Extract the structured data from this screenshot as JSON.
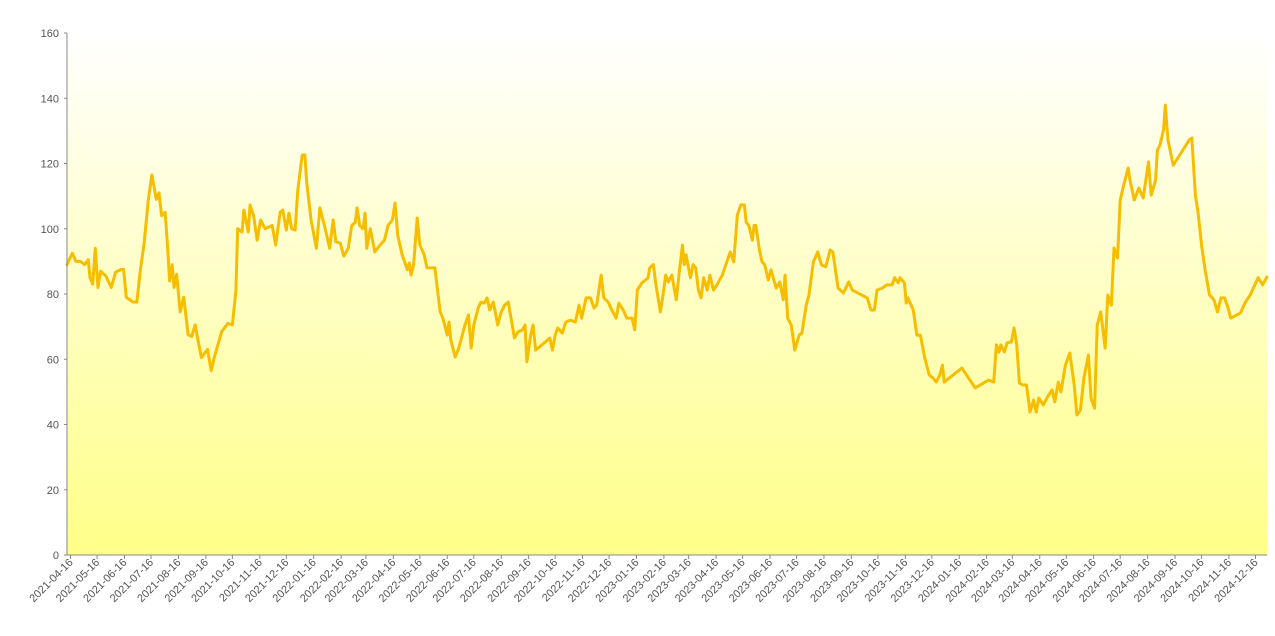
{
  "chart_data": {
    "type": "line",
    "color": "#f7bd00",
    "xlim": [
      "2021-04-12",
      "2024-12-29"
    ],
    "ylim": [
      0,
      160
    ],
    "yticks": [
      0,
      20,
      40,
      60,
      80,
      100,
      120,
      140,
      160
    ],
    "xticks": [
      "2021-04-16",
      "2021-05-16",
      "2021-06-16",
      "2021-07-16",
      "2021-08-16",
      "2021-09-16",
      "2021-10-16",
      "2021-11-16",
      "2021-12-16",
      "2022-01-16",
      "2022-02-16",
      "2022-03-16",
      "2022-04-16",
      "2022-05-16",
      "2022-06-16",
      "2022-07-16",
      "2022-08-16",
      "2022-09-16",
      "2022-10-16",
      "2022-11-16",
      "2022-12-16",
      "2023-01-16",
      "2023-02-16",
      "2023-03-16",
      "2023-04-16",
      "2023-05-16",
      "2023-06-16",
      "2023-07-16",
      "2023-08-16",
      "2023-09-16",
      "2023-10-16",
      "2023-11-16",
      "2023-12-16",
      "2024-01-16",
      "2024-02-16",
      "2024-03-16",
      "2024-04-16",
      "2024-05-16",
      "2024-06-16",
      "2024-07-16",
      "2024-08-16",
      "2024-09-16",
      "2024-10-16",
      "2024-11-16",
      "2024-12-16"
    ],
    "x": [
      "2021-04-12",
      "2021-04-18",
      "2021-04-22",
      "2021-04-27",
      "2021-05-02",
      "2021-05-06",
      "2021-05-08",
      "2021-05-11",
      "2021-05-14",
      "2021-05-17",
      "2021-05-20",
      "2021-05-26",
      "2021-06-01",
      "2021-06-06",
      "2021-06-12",
      "2021-06-15",
      "2021-06-18",
      "2021-06-26",
      "2021-06-30",
      "2021-07-04",
      "2021-07-08",
      "2021-07-13",
      "2021-07-17",
      "2021-07-22",
      "2021-07-25",
      "2021-07-28",
      "2021-08-01",
      "2021-08-04",
      "2021-08-06",
      "2021-08-09",
      "2021-08-11",
      "2021-08-14",
      "2021-08-18",
      "2021-08-22",
      "2021-08-27",
      "2021-08-31",
      "2021-09-04",
      "2021-09-07",
      "2021-09-11",
      "2021-09-18",
      "2021-09-22",
      "2021-09-26",
      "2021-10-04",
      "2021-10-11",
      "2021-10-16",
      "2021-10-20",
      "2021-10-22",
      "2021-10-27",
      "2021-10-29",
      "2021-11-03",
      "2021-11-05",
      "2021-11-09",
      "2021-11-13",
      "2021-11-17",
      "2021-11-22",
      "2021-11-30",
      "2021-12-04",
      "2021-12-09",
      "2021-12-12",
      "2021-12-16",
      "2021-12-19",
      "2021-12-22",
      "2021-12-26",
      "2021-12-29",
      "2022-01-03",
      "2022-01-06",
      "2022-01-08",
      "2022-01-13",
      "2022-01-19",
      "2022-01-23",
      "2022-01-29",
      "2022-02-03",
      "2022-02-07",
      "2022-02-10",
      "2022-02-15",
      "2022-02-19",
      "2022-02-24",
      "2022-02-28",
      "2022-03-04",
      "2022-03-06",
      "2022-03-09",
      "2022-03-13",
      "2022-03-15",
      "2022-03-17",
      "2022-03-21",
      "2022-03-26",
      "2022-04-01",
      "2022-04-06",
      "2022-04-10",
      "2022-04-15",
      "2022-04-18",
      "2022-04-21",
      "2022-04-26",
      "2022-05-02",
      "2022-05-04",
      "2022-05-06",
      "2022-05-09",
      "2022-05-13",
      "2022-05-16",
      "2022-05-21",
      "2022-05-24",
      "2022-06-02",
      "2022-06-08",
      "2022-06-11",
      "2022-06-16",
      "2022-06-18",
      "2022-06-20",
      "2022-06-25",
      "2022-06-29",
      "2022-07-03",
      "2022-07-06",
      "2022-07-10",
      "2022-07-13",
      "2022-07-16",
      "2022-07-21",
      "2022-07-24",
      "2022-07-28",
      "2022-07-31",
      "2022-08-03",
      "2022-08-07",
      "2022-08-10",
      "2022-08-12",
      "2022-08-16",
      "2022-08-20",
      "2022-08-24",
      "2022-08-31",
      "2022-09-04",
      "2022-09-09",
      "2022-09-12",
      "2022-09-14",
      "2022-09-18",
      "2022-09-21",
      "2022-09-24",
      "2022-10-01",
      "2022-10-05",
      "2022-10-10",
      "2022-10-13",
      "2022-10-16",
      "2022-10-19",
      "2022-10-24",
      "2022-10-28",
      "2022-11-02",
      "2022-11-08",
      "2022-11-12",
      "2022-11-15",
      "2022-11-20",
      "2022-11-25",
      "2022-11-29",
      "2022-12-02",
      "2022-12-07",
      "2022-12-10",
      "2022-12-15",
      "2022-12-19",
      "2022-12-24",
      "2022-12-27",
      "2023-01-01",
      "2023-01-05",
      "2023-01-11",
      "2023-01-14",
      "2023-01-17",
      "2023-01-22",
      "2023-01-29",
      "2023-01-31",
      "2023-02-04",
      "2023-02-07",
      "2023-02-12",
      "2023-02-15",
      "2023-02-18",
      "2023-02-21",
      "2023-02-25",
      "2023-03-02",
      "2023-03-05",
      "2023-03-09",
      "2023-03-11",
      "2023-03-13",
      "2023-03-18",
      "2023-03-21",
      "2023-03-24",
      "2023-03-27",
      "2023-03-30",
      "2023-04-02",
      "2023-04-06",
      "2023-04-09",
      "2023-04-13",
      "2023-04-17",
      "2023-04-23",
      "2023-05-02",
      "2023-05-06",
      "2023-05-10",
      "2023-05-14",
      "2023-05-18",
      "2023-05-20",
      "2023-05-23",
      "2023-05-27",
      "2023-05-29",
      "2023-05-31",
      "2023-06-04",
      "2023-06-07",
      "2023-06-10",
      "2023-06-14",
      "2023-06-17",
      "2023-06-23",
      "2023-06-27",
      "2023-07-01",
      "2023-07-03",
      "2023-07-06",
      "2023-07-10",
      "2023-07-14",
      "2023-07-19",
      "2023-07-22",
      "2023-07-27",
      "2023-07-30",
      "2023-08-04",
      "2023-08-09",
      "2023-08-13",
      "2023-08-18",
      "2023-08-23",
      "2023-08-26",
      "2023-09-01",
      "2023-09-07",
      "2023-09-13",
      "2023-09-17",
      "2023-10-04",
      "2023-10-08",
      "2023-10-12",
      "2023-10-15",
      "2023-10-21",
      "2023-10-26",
      "2023-11-01",
      "2023-11-04",
      "2023-11-08",
      "2023-11-10",
      "2023-11-15",
      "2023-11-17",
      "2023-11-19",
      "2023-11-25",
      "2023-11-29",
      "2023-12-03",
      "2023-12-08",
      "2023-12-13",
      "2023-12-17",
      "2023-12-21",
      "2023-12-25",
      "2023-12-28",
      "2023-12-30",
      "2024-01-19",
      "2024-02-03",
      "2024-02-18",
      "2024-02-24",
      "2024-02-27",
      "2024-03-01",
      "2024-03-03",
      "2024-03-07",
      "2024-03-10",
      "2024-03-15",
      "2024-03-18",
      "2024-03-21",
      "2024-03-24",
      "2024-03-28",
      "2024-04-01",
      "2024-04-05",
      "2024-04-09",
      "2024-04-12",
      "2024-04-15",
      "2024-04-20",
      "2024-04-24",
      "2024-04-30",
      "2024-05-03",
      "2024-05-07",
      "2024-05-10",
      "2024-05-15",
      "2024-05-20",
      "2024-05-25",
      "2024-05-28",
      "2024-06-01",
      "2024-06-05",
      "2024-06-10",
      "2024-06-13",
      "2024-06-17",
      "2024-06-20",
      "2024-06-24",
      "2024-06-29",
      "2024-07-02",
      "2024-07-06",
      "2024-07-09",
      "2024-07-13",
      "2024-07-16",
      "2024-07-20",
      "2024-07-25",
      "2024-07-27",
      "2024-08-01",
      "2024-08-06",
      "2024-08-11",
      "2024-08-17",
      "2024-08-20",
      "2024-08-25",
      "2024-08-27",
      "2024-08-30",
      "2024-09-03",
      "2024-09-05",
      "2024-09-08",
      "2024-09-14",
      "2024-10-02",
      "2024-10-05",
      "2024-10-09",
      "2024-10-12",
      "2024-10-16",
      "2024-10-20",
      "2024-10-25",
      "2024-10-30",
      "2024-11-03",
      "2024-11-07",
      "2024-11-11",
      "2024-11-15",
      "2024-11-18",
      "2024-11-29",
      "2024-12-04",
      "2024-12-10",
      "2024-12-19",
      "2024-12-24",
      "2024-12-29"
    ],
    "values": [
      89,
      92.5,
      90,
      90,
      89,
      90.5,
      85,
      83,
      94,
      82,
      87,
      85.5,
      82,
      86.7,
      87.5,
      87.5,
      79,
      77.5,
      77.5,
      87.5,
      95,
      109,
      116.5,
      109,
      111,
      104,
      105,
      93.5,
      84,
      89,
      82,
      86,
      74.5,
      79,
      67.5,
      67,
      70.5,
      66,
      60.5,
      63,
      56.5,
      61,
      68.5,
      71,
      70.5,
      81,
      100,
      99,
      105.7,
      99,
      107.3,
      104,
      96.5,
      102.7,
      100,
      101,
      95,
      105,
      105.7,
      99.6,
      104.8,
      100,
      99.6,
      111.9,
      122.6,
      122.6,
      114.3,
      102.7,
      94,
      106.4,
      100,
      94,
      102.7,
      96,
      95.6,
      91.6,
      94,
      101,
      102,
      106.4,
      101,
      100,
      104.8,
      94,
      100,
      92.9,
      95,
      96.5,
      101,
      102.7,
      107.9,
      98,
      92,
      87.4,
      89.5,
      85.8,
      89,
      103.3,
      95,
      92,
      88,
      88,
      74.5,
      72.6,
      67.4,
      71.4,
      65.9,
      60.7,
      63.4,
      67.4,
      70.5,
      73.6,
      63.4,
      70.5,
      75.7,
      77.5,
      77.2,
      78.8,
      75.1,
      77.5,
      73.6,
      70.5,
      74.5,
      76.6,
      77.5,
      66.5,
      68.4,
      69,
      70.5,
      59.2,
      66.8,
      70.5,
      62.8,
      64.4,
      65.3,
      66.5,
      62.8,
      67.4,
      69.6,
      68,
      71.4,
      72,
      71.4,
      76.6,
      72.6,
      78.8,
      78.8,
      75.7,
      76.6,
      85.8,
      78.8,
      77.5,
      75.1,
      72.6,
      77.2,
      75.1,
      72.6,
      72.6,
      69,
      81.2,
      83.4,
      84.9,
      88,
      89,
      82.8,
      74.5,
      79.7,
      85.8,
      83.7,
      85.8,
      78.2,
      85.8,
      95,
      89,
      92,
      85,
      89,
      88,
      81.2,
      78.8,
      85,
      81.2,
      85.8,
      81.2,
      82.8,
      85.8,
      92.9,
      89.8,
      104.2,
      107.3,
      107.3,
      102,
      101,
      96.5,
      101,
      101,
      93.5,
      89.8,
      89,
      84.3,
      87.4,
      81.8,
      83.7,
      78.2,
      85.8,
      72.6,
      70.5,
      62.8,
      67.4,
      68,
      76.6,
      79.7,
      89.8,
      92.9,
      89,
      88.3,
      93.5,
      92.9,
      81.8,
      80.3,
      83.7,
      81.2,
      78.8,
      75.1,
      75.1,
      81.2,
      81.8,
      82.8,
      82.8,
      85,
      83.4,
      85,
      83.4,
      77.2,
      78.8,
      75.1,
      67.4,
      67.4,
      60.4,
      55.2,
      54.3,
      53,
      55.2,
      58.2,
      53,
      57.3,
      51.2,
      53.6,
      53,
      64.4,
      62.2,
      64.4,
      62.2,
      65,
      65.3,
      69.6,
      64.4,
      52.7,
      52.1,
      52.1,
      43.8,
      47.5,
      43.8,
      48.1,
      46,
      48.1,
      50.6,
      46.9,
      53,
      50,
      58.2,
      61.9,
      52.1,
      42.9,
      44.4,
      54.3,
      61.3,
      48.1,
      45,
      70.5,
      74.5,
      63.4,
      79.7,
      76.6,
      94.1,
      91,
      108.8,
      113.4,
      118.6,
      114.9,
      108.8,
      112.5,
      109.4,
      120.5,
      110.3,
      114.9,
      124.1,
      125.7,
      130.3,
      137.9,
      127.2,
      119.5,
      127.2,
      127.8,
      110.3,
      105.1,
      95,
      87.4,
      79.7,
      78.2,
      74.5,
      78.8,
      78.8,
      75.7,
      72.6,
      74.2,
      77.2,
      79.7,
      85,
      82.8,
      85.2
    ]
  }
}
